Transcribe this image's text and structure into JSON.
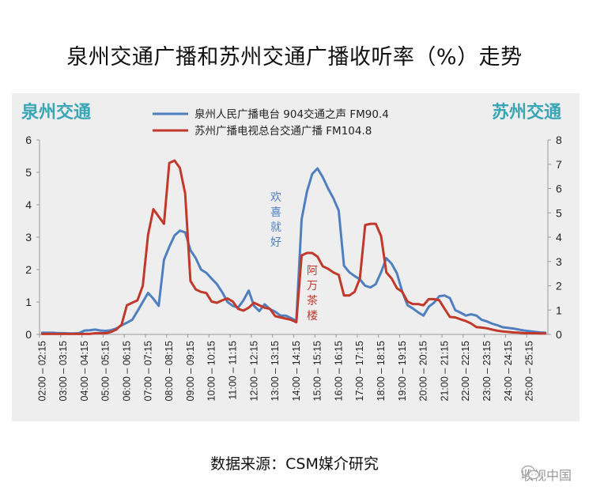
{
  "title": "泉州交通广播和苏州交通广播收听率（%）走势",
  "left_corner_label": "泉州交通",
  "right_corner_label": "苏州交通",
  "source_text": "数据来源：CSM媒介研究",
  "watermark_text": "收视中国",
  "chart_data": {
    "type": "line",
    "x": [
      "02:00 – 02:15",
      "02:15 – 02:30",
      "02:30 – 02:45",
      "02:45 – 03:00",
      "03:00 – 03:15",
      "03:15 – 03:30",
      "03:30 – 03:45",
      "03:45 – 04:00",
      "04:00 – 04:15",
      "04:15 – 04:30",
      "04:30 – 04:45",
      "04:45 – 05:00",
      "05:00 – 05:15",
      "05:15 – 05:30",
      "05:30 – 05:45",
      "05:45 – 06:00",
      "06:00 – 06:15",
      "06:15 – 06:30",
      "06:30 – 06:45",
      "06:45 – 07:00",
      "07:00 – 07:15",
      "07:15 – 07:30",
      "07:30 – 07:45",
      "07:45 – 08:00",
      "08:00 – 08:15",
      "08:15 – 08:30",
      "08:30 – 08:45",
      "08:45 – 09:00",
      "09:00 – 09:15",
      "09:15 – 09:30",
      "09:30 – 09:45",
      "09:45 – 10:00",
      "10:00 – 10:15",
      "10:15 – 10:30",
      "10:30 – 10:45",
      "10:45 – 11:00",
      "11:00 – 11:15",
      "11:15 – 11:30",
      "11:30 – 11:45",
      "11:45 – 12:00",
      "12:00 – 12:15",
      "12:15 – 12:30",
      "12:30 – 12:45",
      "12:45 – 13:00",
      "13:00 – 13:15",
      "13:15 – 13:30",
      "13:30 – 13:45",
      "13:45 – 14:00",
      "14:00 – 14:15",
      "14:15 – 14:30",
      "14:30 – 14:45",
      "14:45 – 15:00",
      "15:00 – 15:15",
      "15:15 – 15:30",
      "15:30 – 15:45",
      "15:45 – 16:00",
      "16:00 – 16:15",
      "16:15 – 16:30",
      "16:30 – 16:45",
      "16:45 – 17:00",
      "17:00 – 17:15",
      "17:15 – 17:30",
      "17:30 – 17:45",
      "17:45 – 18:00",
      "18:00 – 18:15",
      "18:15 – 18:30",
      "18:30 – 18:45",
      "18:45 – 19:00",
      "19:00 – 19:15",
      "19:15 – 19:30",
      "19:30 – 19:45",
      "19:45 – 20:00",
      "20:00 – 20:15",
      "20:15 – 20:30",
      "20:30 – 20:45",
      "20:45 – 21:00",
      "21:00 – 21:15",
      "21:15 – 21:30",
      "21:30 – 21:45",
      "21:45 – 22:00",
      "22:00 – 22:15",
      "22:15 – 22:30",
      "22:30 – 22:45",
      "22:45 – 23:00",
      "23:00 – 23:15",
      "23:15 – 23:30",
      "23:30 – 23:45",
      "23:45 – 24:00",
      "24:00 – 24:15",
      "24:15 – 24:30",
      "24:30 – 24:45",
      "24:45 – 25:00",
      "25:00 – 25:15",
      "25:15 – 25:30",
      "25:30 – 25:45",
      "25:45 – 26:00"
    ],
    "x_tick_labels": [
      "02:00 – 02:15",
      "03:00 – 03:15",
      "04:00 – 04:15",
      "05:00 – 05:15",
      "06:00 – 06:15",
      "07:00 – 07:15",
      "08:00 – 08:15",
      "09:00 – 09:15",
      "10:00 – 10:15",
      "11:00 – 11:15",
      "12:00 – 12:15",
      "13:00 – 13:15",
      "14:00 – 14:15",
      "15:00 – 15:15",
      "16:00 – 16:15",
      "17:00 – 17:15",
      "18:00 – 18:15",
      "19:00 – 19:15",
      "20:00 – 20:15",
      "21:00 – 21:15",
      "22:00 – 22:15",
      "23:00 – 23:15",
      "24:00 – 24:15",
      "25:00 – 25:15"
    ],
    "y_left_ticks": [
      "0",
      "1",
      "2",
      "3",
      "4",
      "5",
      "6"
    ],
    "y_right_ticks": [
      "0",
      "1",
      "2",
      "3",
      "4",
      "5",
      "6",
      "7",
      "8"
    ],
    "y_left_lim": [
      0,
      6
    ],
    "y_right_lim": [
      0,
      8
    ],
    "grid": false,
    "legend_position": "top-center",
    "series": [
      {
        "name": "泉州人民广播电台 904交通之声  FM90.4",
        "axis": "left",
        "color": "#4f7fbf",
        "values": [
          0.05,
          0.05,
          0.05,
          0.04,
          0.04,
          0.03,
          0.03,
          0.04,
          0.12,
          0.13,
          0.15,
          0.12,
          0.11,
          0.13,
          0.18,
          0.28,
          0.36,
          0.45,
          0.72,
          1.0,
          1.28,
          1.1,
          0.88,
          2.3,
          2.7,
          3.05,
          3.2,
          3.15,
          2.6,
          2.35,
          2.0,
          1.9,
          1.72,
          1.55,
          1.3,
          1.0,
          0.88,
          0.83,
          1.05,
          1.35,
          0.88,
          0.72,
          0.93,
          0.78,
          0.7,
          0.58,
          0.58,
          0.5,
          0.42,
          3.55,
          4.4,
          4.95,
          5.12,
          4.85,
          4.5,
          4.2,
          3.82,
          2.12,
          1.92,
          1.8,
          1.7,
          1.5,
          1.45,
          1.55,
          1.92,
          2.35,
          2.18,
          1.88,
          1.32,
          0.9,
          0.8,
          0.68,
          0.58,
          0.85,
          0.98,
          1.18,
          1.2,
          1.12,
          0.75,
          0.67,
          0.58,
          0.62,
          0.58,
          0.45,
          0.4,
          0.33,
          0.28,
          0.22,
          0.2,
          0.18,
          0.15,
          0.12,
          0.1,
          0.08,
          0.06,
          0.05
        ]
      },
      {
        "name": "苏州广播电视总台交通广播  FM104.8",
        "axis": "right",
        "color": "#c0392b",
        "values": [
          0.02,
          0.02,
          0.02,
          0.02,
          0.02,
          0.02,
          0.02,
          0.02,
          0.02,
          0.02,
          0.05,
          0.05,
          0.05,
          0.1,
          0.2,
          0.4,
          1.2,
          1.3,
          1.4,
          2.0,
          4.1,
          5.15,
          4.85,
          4.55,
          7.05,
          7.15,
          6.85,
          5.8,
          2.2,
          1.85,
          1.75,
          1.7,
          1.35,
          1.3,
          1.4,
          1.48,
          1.35,
          1.05,
          0.98,
          1.1,
          1.3,
          1.2,
          1.1,
          1.05,
          0.75,
          0.7,
          0.65,
          0.6,
          0.5,
          3.25,
          3.35,
          3.35,
          3.2,
          2.8,
          2.7,
          2.55,
          2.45,
          1.6,
          1.6,
          1.75,
          2.3,
          4.5,
          4.55,
          4.55,
          4.05,
          2.55,
          2.3,
          1.9,
          1.75,
          1.35,
          1.25,
          1.25,
          1.2,
          1.45,
          1.45,
          1.4,
          1.05,
          0.72,
          0.7,
          0.62,
          0.55,
          0.45,
          0.3,
          0.28,
          0.25,
          0.2,
          0.15,
          0.12,
          0.1,
          0.08,
          0.07,
          0.05,
          0.05,
          0.05,
          0.04,
          0.04
        ]
      }
    ],
    "annotations": [
      {
        "text": "欢喜就好",
        "series": 0
      },
      {
        "text": "阿万茶楼",
        "series": 1
      }
    ]
  }
}
